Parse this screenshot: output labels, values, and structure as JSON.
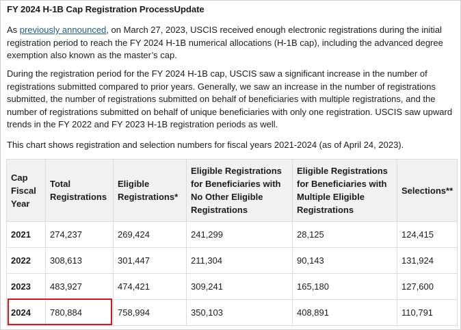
{
  "title": "FY 2024 H-1B Cap Registration ProcessUpdate",
  "para1": {
    "prefix": "As ",
    "link": "previously announced",
    "suffix": ", on March 27, 2023, USCIS received enough electronic registrations during the initial registration period to reach the FY 2024 H-1B numerical allocations (H-1B cap), including the advanced degree exemption also known as the master’s cap."
  },
  "para2": "During the registration period for the FY 2024 H-1B cap, USCIS saw a significant increase in the number of registrations submitted compared to prior years. Generally, we saw an increase in the number of registrations submitted, the number of registrations submitted on behalf of beneficiaries with multiple registrations, and the number of registrations submitted on behalf of unique beneficiaries with only one registration. USCIS saw upward trends in the FY 2022 and FY 2023 H-1B registration periods as well.",
  "para3": "This chart shows registration and selection numbers for fiscal years 2021-2024 (as of April 24, 2023).",
  "table": {
    "headers": [
      "Cap Fiscal Year",
      "Total Registrations",
      "Eligible Registrations*",
      "Eligible Registrations for Beneficiaries with No Other Eligible Registrations",
      "Eligible Registrations for Beneficiaries with Multiple Eligible Registrations",
      "Selections**"
    ],
    "rows": [
      [
        "2021",
        "274,237",
        "269,424",
        "241,299",
        "28,125",
        "124,415"
      ],
      [
        "2022",
        "308,613",
        "301,447",
        "211,304",
        "90,143",
        "131,924"
      ],
      [
        "2023",
        "483,927",
        "474,421",
        "309,241",
        "165,180",
        "127,600"
      ],
      [
        "2024",
        "780,884",
        "758,994",
        "350,103",
        "408,891",
        "110,791"
      ]
    ]
  },
  "highlight_color": "#e0121b",
  "link_color": "#1a5a8a"
}
